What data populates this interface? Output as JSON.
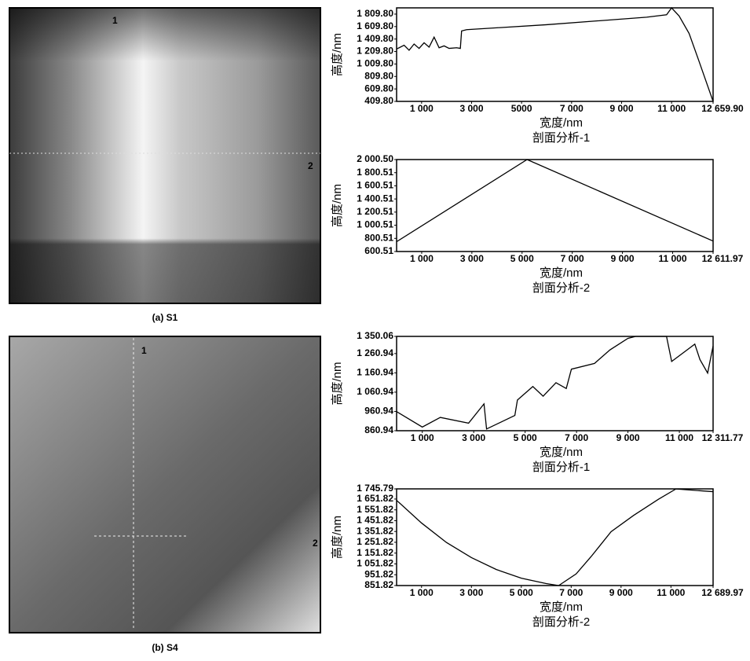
{
  "chart_data": [
    {
      "type": "line",
      "title": "剖面分析-1",
      "x_label": "宽度/nm",
      "y_label": "高度/nm",
      "color": "#000000",
      "x": [
        0,
        300,
        500,
        700,
        900,
        1100,
        1300,
        1500,
        1700,
        1900,
        2100,
        2400,
        2550,
        2600,
        2800,
        4000,
        6000,
        8000,
        10000,
        10800,
        11000,
        11300,
        11700,
        12100,
        12659.9
      ],
      "values": [
        1250,
        1310,
        1230,
        1330,
        1260,
        1350,
        1280,
        1440,
        1270,
        1300,
        1260,
        1270,
        1260,
        1540,
        1560,
        1590,
        1640,
        1700,
        1760,
        1800,
        1910,
        1780,
        1500,
        1050,
        409.8
      ],
      "xlim": [
        0,
        12659.9
      ],
      "xticks": [
        {
          "value": 1000,
          "label": "1 000"
        },
        {
          "value": 3000,
          "label": "3 000"
        },
        5000,
        {
          "value": 7000,
          "label": "7 000"
        },
        {
          "value": 9000,
          "label": "9 000"
        },
        {
          "value": 11000,
          "label": "11 000"
        },
        {
          "value": 12659.9,
          "label": "12 659.90"
        }
      ],
      "ylim": [
        409.8,
        1910
      ],
      "yticks": [
        {
          "value": 1809.8,
          "label": "1 809.80"
        },
        {
          "value": 1609.8,
          "label": "1 609.80"
        },
        {
          "value": 1409.8,
          "label": "1 409.80"
        },
        {
          "value": 1209.8,
          "label": "1 209.80"
        },
        {
          "value": 1009.8,
          "label": "1 009.80"
        },
        {
          "value": 809.8,
          "label": "809.80"
        },
        {
          "value": 609.8,
          "label": "609.80"
        },
        {
          "value": 409.8,
          "label": "409.80"
        }
      ]
    },
    {
      "type": "line",
      "title": "剖面分析-2",
      "x_label": "宽度/nm",
      "y_label": "高度/nm",
      "color": "#000000",
      "x": [
        0,
        5200,
        12611.97
      ],
      "values": [
        750,
        2000.5,
        760
      ],
      "xlim": [
        0,
        12611.97
      ],
      "xticks": [
        {
          "value": 1000,
          "label": "1 000"
        },
        {
          "value": 3000,
          "label": "3 000"
        },
        {
          "value": 5000,
          "label": "5 000"
        },
        {
          "value": 7000,
          "label": "7 000"
        },
        {
          "value": 9000,
          "label": "9 000"
        },
        {
          "value": 11000,
          "label": "11 000"
        },
        {
          "value": 12611.97,
          "label": "12 611.97"
        }
      ],
      "ylim": [
        600.51,
        2000.5
      ],
      "yticks": [
        {
          "value": 2000.5,
          "label": "2 000.50"
        },
        {
          "value": 1800.51,
          "label": "1 800.51"
        },
        {
          "value": 1600.51,
          "label": "1 600.51"
        },
        {
          "value": 1400.51,
          "label": "1 400.51"
        },
        {
          "value": 1200.51,
          "label": "1 200.51"
        },
        {
          "value": 1000.51,
          "label": "1 000.51"
        },
        800.51,
        600.51
      ]
    },
    {
      "type": "line",
      "title": "剖面分析-1",
      "x_label": "宽度/nm",
      "y_label": "高度/nm",
      "color": "#000000",
      "x": [
        0,
        1000,
        1700,
        2800,
        3400,
        3500,
        4600,
        4700,
        5300,
        5700,
        6200,
        6600,
        6800,
        7700,
        8300,
        9000,
        9300,
        10500,
        10700,
        11400,
        11600,
        11800,
        12100,
        12311.77
      ],
      "values": [
        960,
        880,
        930,
        900,
        1000,
        870,
        940,
        1020,
        1090,
        1040,
        1110,
        1080,
        1180,
        1210,
        1280,
        1340,
        1350,
        1350,
        1220,
        1290,
        1310,
        1230,
        1160,
        1300
      ],
      "xlim": [
        0,
        12311.77
      ],
      "xticks": [
        {
          "value": 1000,
          "label": "1 000"
        },
        {
          "value": 3000,
          "label": "3 000"
        },
        {
          "value": 5000,
          "label": "5 000"
        },
        {
          "value": 7000,
          "label": "7 000"
        },
        {
          "value": 9000,
          "label": "9 000"
        },
        {
          "value": 11000,
          "label": "11 000"
        },
        {
          "value": 12311.77,
          "label": "12 311.77"
        }
      ],
      "ylim": [
        860.94,
        1350.06
      ],
      "yticks": [
        {
          "value": 1350.06,
          "label": "1 350.06"
        },
        {
          "value": 1260.94,
          "label": "1 260.94"
        },
        {
          "value": 1160.94,
          "label": "1 160.94"
        },
        {
          "value": 1060.94,
          "label": "1 060.94"
        },
        960.94,
        860.94
      ]
    },
    {
      "type": "line",
      "title": "剖面分析-2",
      "x_label": "宽度/nm",
      "y_label": "高度/nm",
      "color": "#000000",
      "x": [
        0,
        1000,
        2000,
        3000,
        4000,
        5000,
        6000,
        6500,
        7200,
        7800,
        8600,
        9500,
        10500,
        11200,
        12689.97
      ],
      "values": [
        1640,
        1430,
        1250,
        1110,
        1000,
        920,
        870,
        851.82,
        960,
        1120,
        1350,
        1500,
        1650,
        1745,
        1720
      ],
      "xlim": [
        0,
        12689.97
      ],
      "xticks": [
        {
          "value": 1000,
          "label": "1 000"
        },
        {
          "value": 3000,
          "label": "3 000"
        },
        {
          "value": 5000,
          "label": "5 000"
        },
        {
          "value": 7000,
          "label": "7 000"
        },
        {
          "value": 9000,
          "label": "9 000"
        },
        {
          "value": 11000,
          "label": "11 000"
        },
        {
          "value": 12689.97,
          "label": "12 689.97"
        }
      ],
      "ylim": [
        851.82,
        1745.79
      ],
      "yticks": [
        {
          "value": 1745.79,
          "label": "1 745.79"
        },
        {
          "value": 1651.82,
          "label": "1 651.82"
        },
        {
          "value": 1551.82,
          "label": "1 551.82"
        },
        {
          "value": 1451.82,
          "label": "1 451.82"
        },
        {
          "value": 1351.82,
          "label": "1 351.82"
        },
        {
          "value": 1251.82,
          "label": "1 251.82"
        },
        {
          "value": 1151.82,
          "label": "1 151.82"
        },
        {
          "value": 1051.82,
          "label": "1 051.82"
        },
        951.82,
        851.82
      ]
    }
  ],
  "panels": [
    {
      "label": "(a) S1",
      "markers": [
        "1",
        "2"
      ]
    },
    {
      "label": "(b) S4",
      "markers": [
        "1",
        "2"
      ]
    }
  ]
}
